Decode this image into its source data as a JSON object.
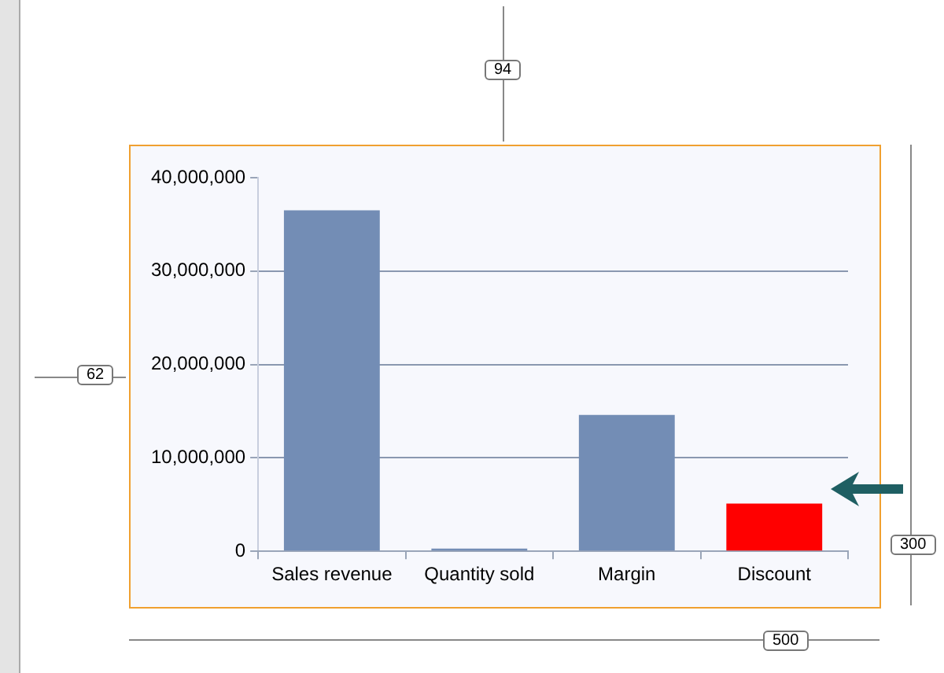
{
  "chart_data": {
    "type": "bar",
    "categories": [
      "Sales revenue",
      "Quantity sold",
      "Margin",
      "Discount"
    ],
    "values": [
      36500000,
      300000,
      14600000,
      5100000
    ],
    "colors": [
      "#738db5",
      "#738db5",
      "#738db5",
      "#ff0000"
    ],
    "ylim": [
      0,
      40000000
    ],
    "yticks": [
      0,
      {
        "value": 10000000,
        "label": "10,000,000"
      },
      {
        "value": 20000000,
        "label": "20,000,000"
      },
      {
        "value": 30000000,
        "label": "30,000,000"
      },
      {
        "value": 40000000,
        "label": "40,000,000"
      }
    ],
    "grid": "y",
    "annotations": [
      "94",
      "62",
      "300",
      "500"
    ]
  }
}
